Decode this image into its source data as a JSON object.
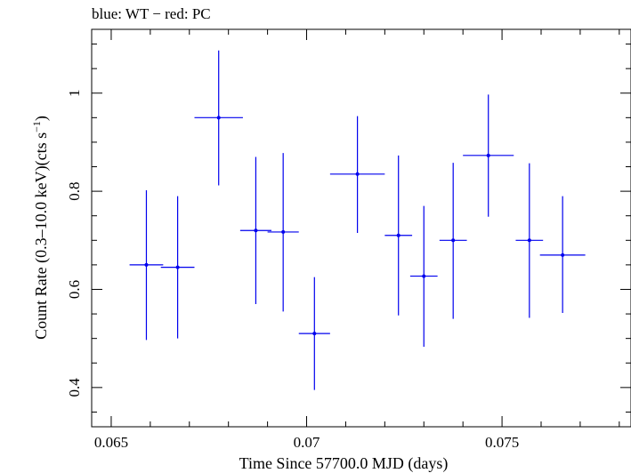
{
  "chart_data": {
    "type": "scatter",
    "title": "blue: WT − red: PC",
    "xlabel": "Time Since 57700.0 MJD (days)",
    "ylabel_main": "Count Rate (0.3–10.0 keV)(cts s",
    "ylabel_sup": "−1",
    "ylabel_close": ")",
    "xlim": [
      0.0645,
      0.0783
    ],
    "ylim": [
      0.32,
      1.13
    ],
    "x_ticks": [
      0.065,
      0.07,
      0.075
    ],
    "x_tick_labels": [
      "0.065",
      "0.07",
      "0.075"
    ],
    "y_ticks": [
      0.4,
      0.6,
      0.8,
      1.0
    ],
    "y_tick_labels": [
      "0.4",
      "0.6",
      "0.8",
      "1"
    ],
    "x_minor_step": 0.001,
    "y_minor_step": 0.05,
    "grid": false,
    "legend": "none",
    "series": [
      {
        "color": "#0000ee",
        "points": [
          {
            "x": 0.0659,
            "xerr": 0.00043,
            "y": 0.65,
            "ylo": 0.497,
            "yhi": 0.802
          },
          {
            "x": 0.0667,
            "xerr": 0.00043,
            "y": 0.645,
            "ylo": 0.5,
            "yhi": 0.79
          },
          {
            "x": 0.06775,
            "xerr": 0.00062,
            "y": 0.95,
            "ylo": 0.812,
            "yhi": 1.087
          },
          {
            "x": 0.0687,
            "xerr": 0.0004,
            "y": 0.72,
            "ylo": 0.57,
            "yhi": 0.87
          },
          {
            "x": 0.0694,
            "xerr": 0.0004,
            "y": 0.717,
            "ylo": 0.555,
            "yhi": 0.878
          },
          {
            "x": 0.0702,
            "xerr": 0.0004,
            "y": 0.51,
            "ylo": 0.395,
            "yhi": 0.625
          },
          {
            "x": 0.0713,
            "xerr": 0.0007,
            "y": 0.835,
            "ylo": 0.715,
            "yhi": 0.953
          },
          {
            "x": 0.07235,
            "xerr": 0.00035,
            "y": 0.71,
            "ylo": 0.547,
            "yhi": 0.873
          },
          {
            "x": 0.073,
            "xerr": 0.00035,
            "y": 0.627,
            "ylo": 0.483,
            "yhi": 0.77
          },
          {
            "x": 0.07375,
            "xerr": 0.00035,
            "y": 0.7,
            "ylo": 0.54,
            "yhi": 0.858
          },
          {
            "x": 0.07465,
            "xerr": 0.00065,
            "y": 0.873,
            "ylo": 0.748,
            "yhi": 0.997
          },
          {
            "x": 0.0757,
            "xerr": 0.00035,
            "y": 0.7,
            "ylo": 0.542,
            "yhi": 0.857
          },
          {
            "x": 0.07655,
            "xerr": 0.00058,
            "y": 0.67,
            "ylo": 0.552,
            "yhi": 0.79
          }
        ]
      }
    ]
  }
}
